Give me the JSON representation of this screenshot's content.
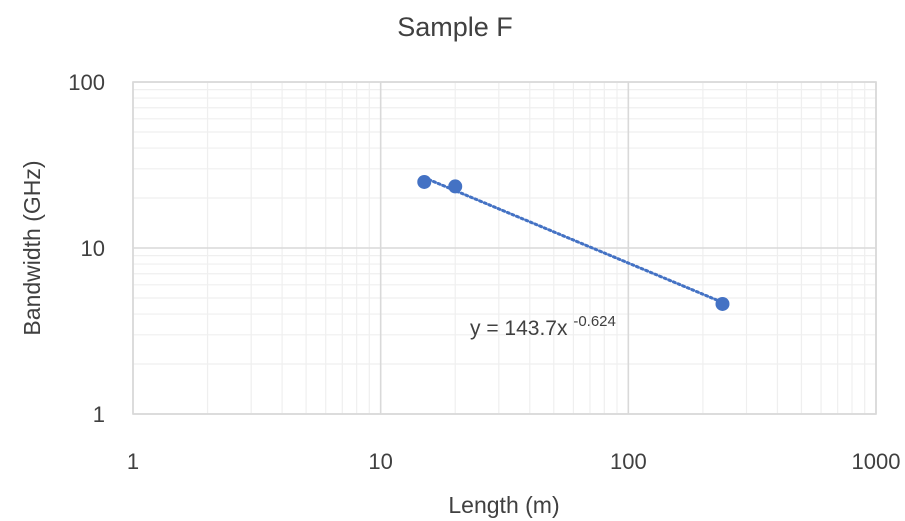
{
  "chart_data": {
    "type": "scatter",
    "title": "Sample F",
    "xlabel": "Length (m)",
    "ylabel": "Bandwidth (GHz)",
    "x_scale": "log",
    "y_scale": "log",
    "xlim": [
      1,
      1000
    ],
    "ylim": [
      1,
      100
    ],
    "x_ticks": [
      "1",
      "10",
      "100",
      "1000"
    ],
    "y_ticks": [
      "1",
      "10",
      "100"
    ],
    "grid": true,
    "series": [
      {
        "color": "#4472C4",
        "points": [
          {
            "x": 15,
            "y": 25
          },
          {
            "x": 20,
            "y": 23.5
          },
          {
            "x": 240,
            "y": 4.6
          }
        ]
      }
    ],
    "trendline": {
      "type": "power",
      "style": "dotted",
      "color": "#4472C4",
      "coefficient": 143.7,
      "exponent": -0.624,
      "x_range": [
        15,
        240
      ],
      "label_base": "y = 143.7x",
      "label_exponent": "-0.624"
    },
    "colors": {
      "major_grid": "#D9D9D9",
      "minor_grid": "#EFEFEF",
      "text": "#404040"
    }
  }
}
